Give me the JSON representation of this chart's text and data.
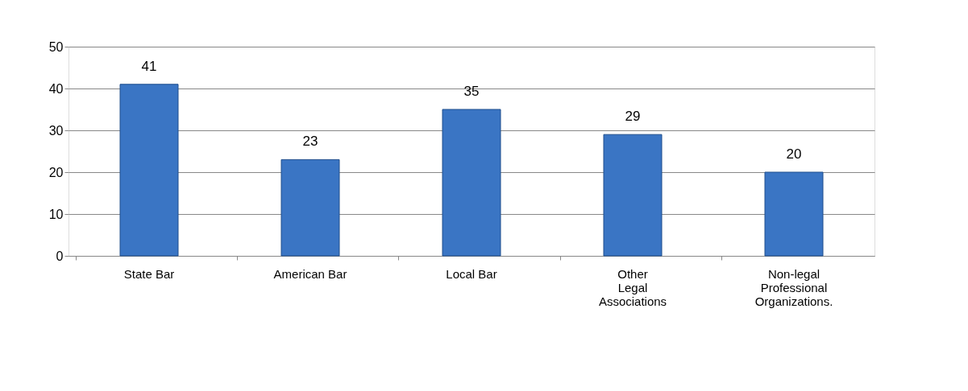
{
  "chart_data": {
    "type": "bar",
    "categories": [
      "State Bar",
      "American Bar",
      "Local Bar",
      "Other Legal Associations",
      "Non-legal Professional Organizations."
    ],
    "values": [
      41,
      23,
      35,
      29,
      20
    ],
    "color": "#3a75c4",
    "ylim": [
      0,
      50
    ],
    "yticks": [
      0,
      10,
      20,
      30,
      40,
      50
    ],
    "grid": "y",
    "data_labels": true
  }
}
